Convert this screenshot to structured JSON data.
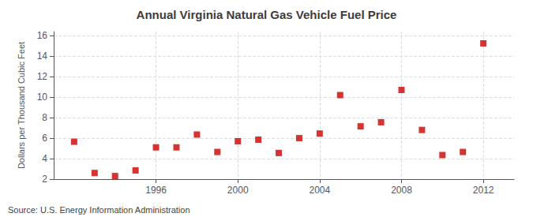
{
  "chart_data": {
    "type": "scatter",
    "title": "Annual Virginia Natural Gas Vehicle Fuel Price",
    "ylabel": "Dollars per Thousand Cubic Feet",
    "annotations": [
      "Source: U.S. Energy Information Administration"
    ],
    "x": [
      1992,
      1993,
      1994,
      1995,
      1996,
      1997,
      1998,
      1999,
      2000,
      2001,
      2002,
      2003,
      2004,
      2005,
      2006,
      2007,
      2008,
      2009,
      2010,
      2011,
      2012
    ],
    "values": [
      5.65,
      2.6,
      2.3,
      2.85,
      5.1,
      5.1,
      6.35,
      4.65,
      5.7,
      5.85,
      4.55,
      6.0,
      6.45,
      10.2,
      7.15,
      7.55,
      10.7,
      6.8,
      4.35,
      4.65,
      15.25
    ],
    "color": "#cc0000",
    "marker": "square",
    "xlim": [
      1991.0,
      2013.5
    ],
    "ylim": [
      2,
      16.4
    ],
    "xticks": [
      1996,
      2000,
      2004,
      2008,
      2012
    ],
    "yticks": [
      2,
      4,
      6,
      8,
      10,
      12,
      14,
      16
    ],
    "grid": true
  }
}
